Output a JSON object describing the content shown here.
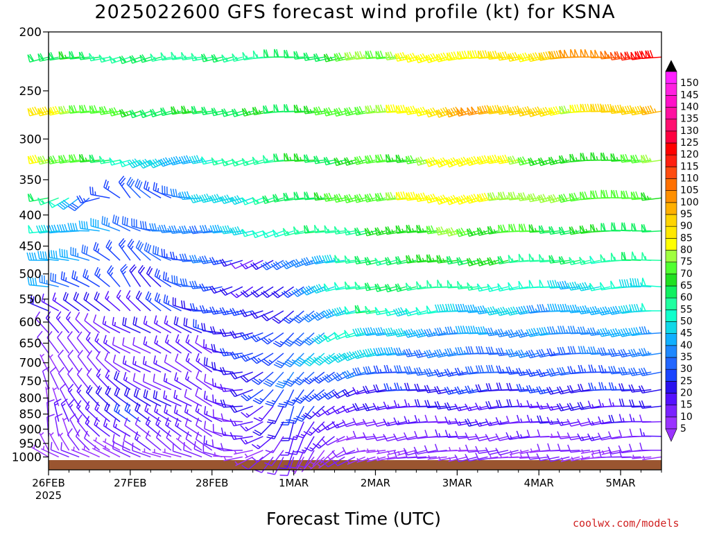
{
  "chart_data": {
    "type": "wind_barb_time_height",
    "title": "2025022600 GFS forecast wind profile (kt) for KSNA",
    "xlabel": "Forecast Time (UTC)",
    "ylabel": "",
    "credit": "coolwx.com/models",
    "x_range_days": [
      0,
      7.5
    ],
    "y_range_hPa": [
      200,
      1050
    ],
    "y_scale": "log",
    "y_ticks": [
      200,
      250,
      300,
      350,
      400,
      450,
      500,
      550,
      600,
      650,
      700,
      750,
      800,
      850,
      900,
      950,
      1000
    ],
    "x_ticks": [
      {
        "day": 0,
        "label": "26FEB",
        "sublabel": "2025"
      },
      {
        "day": 1,
        "label": "27FEB",
        "sublabel": ""
      },
      {
        "day": 2,
        "label": "28FEB",
        "sublabel": ""
      },
      {
        "day": 3,
        "label": "1MAR",
        "sublabel": ""
      },
      {
        "day": 4,
        "label": "2MAR",
        "sublabel": ""
      },
      {
        "day": 5,
        "label": "3MAR",
        "sublabel": ""
      },
      {
        "day": 6,
        "label": "4MAR",
        "sublabel": ""
      },
      {
        "day": 7,
        "label": "5MAR",
        "sublabel": ""
      }
    ],
    "barb_levels_hPa": [
      220,
      270,
      325,
      375,
      425,
      475,
      525,
      575,
      625,
      675,
      725,
      775,
      825,
      875,
      925,
      975,
      1000
    ],
    "barb_interval_hours": 3,
    "terrain_pressure_hPa": 1012,
    "terrain_color": "#9a5530",
    "colorbar": {
      "values": [
        5,
        10,
        15,
        20,
        25,
        30,
        35,
        40,
        45,
        50,
        55,
        60,
        65,
        70,
        75,
        80,
        85,
        90,
        95,
        100,
        105,
        110,
        115,
        120,
        125,
        130,
        135,
        140,
        145,
        150
      ],
      "labels": [
        "5",
        "10",
        "15",
        "20",
        "25",
        "30",
        "35",
        "40",
        "45",
        "50",
        "55",
        "60",
        "65",
        "70",
        "75",
        "80",
        "85",
        "90",
        "95",
        "100",
        "105",
        "110",
        "115",
        "120",
        "125",
        "130",
        "135",
        "140",
        "145",
        "150"
      ],
      "colors": [
        "#9a33ff",
        "#7a22ff",
        "#5511ff",
        "#2a11ee",
        "#1a44ff",
        "#2266ff",
        "#1e88ff",
        "#10b0ff",
        "#10d8e8",
        "#10ffcc",
        "#20ffa0",
        "#10f060",
        "#20e020",
        "#50ff30",
        "#a0ff40",
        "#ffff00",
        "#ffe800",
        "#ffd400",
        "#ffb000",
        "#ff9000",
        "#ff7000",
        "#ff4c10",
        "#ff2010",
        "#ff0000",
        "#ff0040",
        "#ff1070",
        "#ff10a0",
        "#ff10c8",
        "#ff22e0",
        "#ff22ff"
      ]
    },
    "wind_keyframes": [
      {
        "level": 220,
        "day": [
          0,
          1.5,
          3,
          4.5,
          6,
          7.5
        ],
        "speed": [
          62,
          55,
          58,
          78,
          85,
          120
        ],
        "dir": [
          260,
          255,
          265,
          258,
          262,
          268
        ]
      },
      {
        "level": 270,
        "day": [
          0,
          1.5,
          3,
          4.5,
          5.4,
          6.5,
          7.5
        ],
        "speed": [
          82,
          60,
          62,
          78,
          98,
          80,
          95
        ],
        "dir": [
          262,
          255,
          262,
          260,
          255,
          262,
          265
        ]
      },
      {
        "level": 325,
        "day": [
          0,
          1.5,
          3,
          4.5,
          5.4,
          6.5,
          7.5
        ],
        "speed": [
          80,
          40,
          60,
          70,
          85,
          62,
          70
        ],
        "dir": [
          265,
          250,
          262,
          258,
          252,
          262,
          268
        ]
      },
      {
        "level": 375,
        "day": [
          0,
          0.5,
          1,
          1.5,
          2,
          3,
          4,
          5,
          6.5,
          7.5
        ],
        "speed": [
          60,
          30,
          25,
          28,
          40,
          58,
          70,
          82,
          72,
          68
        ],
        "dir": [
          262,
          230,
          320,
          300,
          250,
          258,
          262,
          255,
          262,
          268
        ]
      },
      {
        "level": 425,
        "day": [
          0,
          1,
          2,
          2.8,
          4,
          5,
          6.5,
          7.5
        ],
        "speed": [
          50,
          30,
          35,
          50,
          60,
          72,
          62,
          60
        ],
        "dir": [
          262,
          290,
          260,
          255,
          262,
          258,
          265,
          268
        ]
      },
      {
        "level": 475,
        "day": [
          0,
          1,
          2,
          2.5,
          4,
          5,
          6.5,
          7.5
        ],
        "speed": [
          42,
          25,
          32,
          15,
          58,
          65,
          55,
          55
        ],
        "dir": [
          265,
          320,
          265,
          240,
          262,
          258,
          262,
          268
        ]
      },
      {
        "level": 525,
        "day": [
          0,
          1,
          2,
          2.5,
          3,
          4,
          5,
          6.5,
          7.5
        ],
        "speed": [
          35,
          20,
          30,
          15,
          25,
          60,
          55,
          45,
          50
        ],
        "dir": [
          270,
          330,
          270,
          230,
          240,
          260,
          262,
          262,
          268
        ]
      },
      {
        "level": 575,
        "day": [
          0,
          1,
          2,
          3,
          4,
          5,
          6.5,
          7.5
        ],
        "speed": [
          20,
          18,
          25,
          20,
          55,
          45,
          38,
          45
        ],
        "dir": [
          290,
          320,
          275,
          230,
          258,
          262,
          262,
          265
        ]
      },
      {
        "level": 625,
        "day": [
          0,
          1,
          2,
          3,
          3.7,
          4.5,
          5.5,
          6.5,
          7.5
        ],
        "speed": [
          12,
          15,
          20,
          25,
          50,
          40,
          38,
          35,
          40
        ],
        "dir": [
          320,
          300,
          290,
          220,
          250,
          262,
          262,
          262,
          265
        ]
      },
      {
        "level": 675,
        "day": [
          0,
          1,
          2,
          3,
          3.7,
          4.5,
          5.5,
          6.5,
          7.5
        ],
        "speed": [
          10,
          12,
          15,
          30,
          48,
          35,
          32,
          30,
          35
        ],
        "dir": [
          330,
          300,
          300,
          215,
          245,
          262,
          262,
          262,
          265
        ]
      },
      {
        "level": 725,
        "day": [
          0,
          1,
          2,
          3,
          4,
          5,
          6.5,
          7.5
        ],
        "speed": [
          8,
          12,
          15,
          30,
          30,
          28,
          25,
          30
        ],
        "dir": [
          340,
          300,
          300,
          210,
          262,
          262,
          262,
          265
        ]
      },
      {
        "level": 775,
        "day": [
          0,
          1,
          2,
          3,
          4,
          5,
          6.5,
          7.5
        ],
        "speed": [
          8,
          15,
          12,
          28,
          20,
          22,
          22,
          22
        ],
        "dir": [
          345,
          300,
          300,
          205,
          262,
          262,
          262,
          265
        ]
      },
      {
        "level": 825,
        "day": [
          0,
          1,
          2,
          3,
          4,
          5,
          6.5,
          7.5
        ],
        "speed": [
          8,
          22,
          12,
          22,
          15,
          18,
          18,
          18
        ],
        "dir": [
          350,
          300,
          300,
          200,
          262,
          262,
          262,
          265
        ]
      },
      {
        "level": 875,
        "day": [
          0,
          1,
          2,
          3,
          4,
          5,
          6.5,
          7.5
        ],
        "speed": [
          10,
          22,
          12,
          18,
          10,
          15,
          15,
          15
        ],
        "dir": [
          350,
          300,
          305,
          200,
          262,
          262,
          262,
          265
        ]
      },
      {
        "level": 925,
        "day": [
          0,
          1,
          2,
          3,
          4,
          5,
          6.5,
          7.5
        ],
        "speed": [
          8,
          15,
          12,
          15,
          8,
          12,
          10,
          12
        ],
        "dir": [
          350,
          300,
          310,
          200,
          262,
          262,
          262,
          265
        ]
      },
      {
        "level": 975,
        "day": [
          0,
          1,
          2,
          3,
          4,
          5,
          6.5,
          7.5
        ],
        "speed": [
          5,
          10,
          10,
          10,
          5,
          10,
          8,
          8
        ],
        "dir": [
          330,
          300,
          310,
          200,
          260,
          262,
          262,
          265
        ]
      },
      {
        "level": 1000,
        "day": [
          0,
          1,
          2,
          3,
          4,
          5,
          6.5,
          7.5
        ],
        "speed": [
          5,
          8,
          8,
          8,
          5,
          8,
          6,
          6
        ],
        "dir": [
          300,
          290,
          290,
          200,
          260,
          262,
          262,
          265
        ]
      }
    ]
  }
}
